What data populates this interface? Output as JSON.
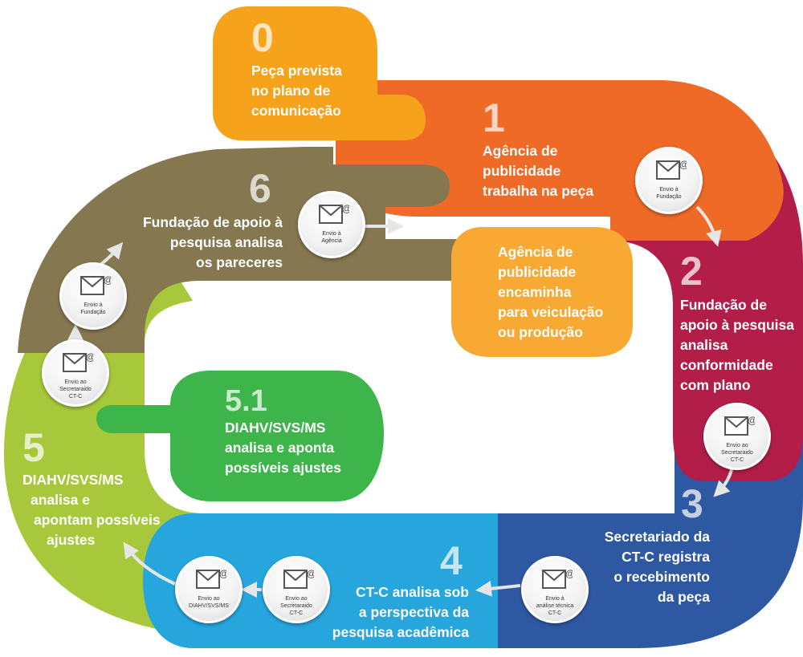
{
  "colors": {
    "step0": "#f7a21b",
    "step1": "#ef6a27",
    "step2": "#b21e48",
    "step3": "#2f58a3",
    "step4": "#27a6de",
    "step5": "#a8c83c",
    "step51": "#3db54a",
    "step6": "#857750",
    "side": "#f7a933",
    "arrow": "#e6e6e6"
  },
  "steps": {
    "s0": {
      "number": "0",
      "lines": [
        "Peça prevista",
        "no plano de",
        "comunicação"
      ]
    },
    "s1": {
      "number": "1",
      "lines": [
        "Agência de",
        "publicidade",
        "trabalha na peça"
      ]
    },
    "s2": {
      "number": "2",
      "lines": [
        "Fundação de",
        "apoio à pesquisa",
        "analisa",
        "conformidade",
        "com plano"
      ]
    },
    "s3": {
      "number": "3",
      "lines": [
        "Secretariado da",
        "CT-C registra",
        "o recebimento",
        "da peça"
      ]
    },
    "s4": {
      "number": "4",
      "lines": [
        "CT-C analisa sob",
        "a perspectiva da",
        "pesquisa acadêmica"
      ]
    },
    "s5": {
      "number": "5",
      "lines": [
        "DIAHV/SVS/MS",
        "analisa e",
        "apontam possíveis",
        "ajustes"
      ]
    },
    "s51": {
      "number": "5.1",
      "lines": [
        "DIAHV/SVS/MS",
        "analisa e aponta",
        "possíveis ajustes"
      ]
    },
    "s6": {
      "number": "6",
      "lines": [
        "Fundação de apoio à",
        "pesquisa analisa",
        "os pareceres"
      ]
    },
    "side": {
      "lines": [
        "Agência de",
        "publicidade",
        "encaminha",
        "para veiculação",
        "ou produção"
      ]
    }
  },
  "envelopes": {
    "e1": {
      "icon": "email-envelope-icon",
      "lines": [
        "Envio à",
        "Fundação"
      ]
    },
    "e2": {
      "icon": "email-envelope-icon",
      "lines": [
        "Envio ao",
        "Secretaraido",
        "CT-C"
      ]
    },
    "e3": {
      "icon": "email-envelope-icon",
      "lines": [
        "Envio à",
        "análise técnica",
        "CT-C"
      ]
    },
    "e4": {
      "icon": "email-envelope-icon",
      "lines": [
        "Envio ao",
        "Secretaraido",
        "CT-C"
      ]
    },
    "e5": {
      "icon": "email-envelope-icon",
      "lines": [
        "Envio ao",
        "DIAHV/SVS/MS"
      ]
    },
    "e6": {
      "icon": "email-envelope-icon",
      "lines": [
        "Envio ao",
        "Secretaraido",
        "CT-C"
      ]
    },
    "e7": {
      "icon": "email-envelope-icon",
      "lines": [
        "Envio à",
        "Fundação"
      ]
    },
    "e8": {
      "icon": "email-envelope-icon",
      "lines": [
        "Envio à",
        "Agência"
      ]
    }
  }
}
